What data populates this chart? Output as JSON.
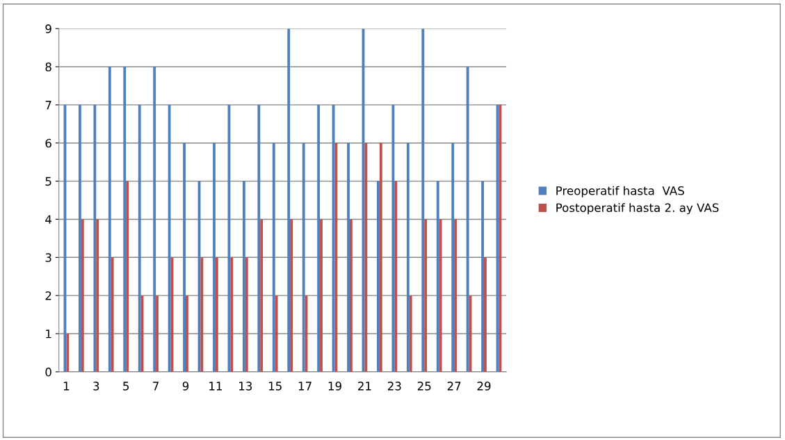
{
  "chart_data": {
    "type": "bar",
    "categories": [
      "1",
      null,
      "3",
      null,
      "5",
      null,
      "7",
      null,
      "9",
      null,
      "11",
      null,
      "13",
      null,
      "15",
      null,
      "17",
      null,
      "19",
      null,
      "21",
      null,
      "23",
      null,
      "25",
      null,
      "27",
      null,
      "29",
      null
    ],
    "series": [
      {
        "name": "Preoperatif hasta  VAS",
        "color": "#4f81bd",
        "values": [
          7,
          7,
          7,
          8,
          8,
          7,
          8,
          7,
          6,
          5,
          6,
          7,
          5,
          7,
          6,
          9,
          6,
          7,
          7,
          6,
          9,
          5,
          7,
          6,
          9,
          5,
          6,
          8,
          5,
          7
        ]
      },
      {
        "name": "Postoperatif hasta 2. ay VAS",
        "color": "#c0504d",
        "values": [
          1,
          4,
          4,
          3,
          5,
          2,
          2,
          3,
          2,
          3,
          3,
          3,
          3,
          4,
          2,
          4,
          2,
          4,
          6,
          4,
          6,
          6,
          5,
          2,
          4,
          4,
          4,
          2,
          3,
          7
        ]
      }
    ],
    "ylim": [
      0,
      9
    ],
    "yticks": [
      0,
      1,
      2,
      3,
      4,
      5,
      6,
      7,
      8,
      9
    ],
    "grid": "y",
    "legend": "right"
  }
}
